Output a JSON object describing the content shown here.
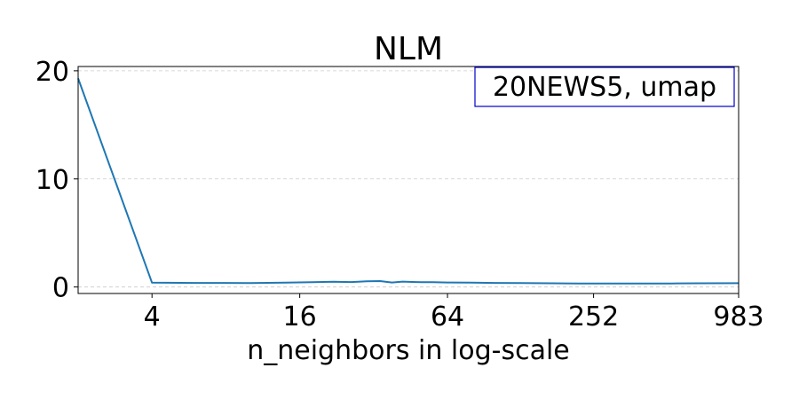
{
  "chart_data": {
    "type": "line",
    "title": "NLM",
    "xlabel": "n_neighbors in log-scale",
    "ylabel": "",
    "x_scale": "log2",
    "xlim": [
      2,
      983
    ],
    "ylim": [
      -0.6,
      20.4
    ],
    "x_ticks": [
      4,
      16,
      64,
      252,
      983
    ],
    "x_tick_labels": [
      "4",
      "16",
      "64",
      "252",
      "983"
    ],
    "y_ticks": [
      0,
      10,
      20
    ],
    "y_tick_labels": [
      "0",
      "10",
      "20"
    ],
    "grid": "horizontal dashed",
    "annotation": "20NEWS5, umap",
    "annotation_position": "top-right",
    "series": [
      {
        "color": "#1f77b4",
        "x": [
          2,
          4,
          6,
          10,
          14,
          18,
          22,
          26,
          30,
          34,
          38,
          42,
          46,
          50,
          56,
          64,
          80,
          100,
          130,
          170,
          220,
          300,
          400,
          520,
          680,
          983
        ],
        "y": [
          19.3,
          0.4,
          0.38,
          0.37,
          0.4,
          0.45,
          0.48,
          0.46,
          0.52,
          0.55,
          0.42,
          0.5,
          0.47,
          0.44,
          0.45,
          0.42,
          0.4,
          0.38,
          0.37,
          0.34,
          0.33,
          0.32,
          0.33,
          0.33,
          0.34,
          0.35
        ]
      }
    ]
  }
}
